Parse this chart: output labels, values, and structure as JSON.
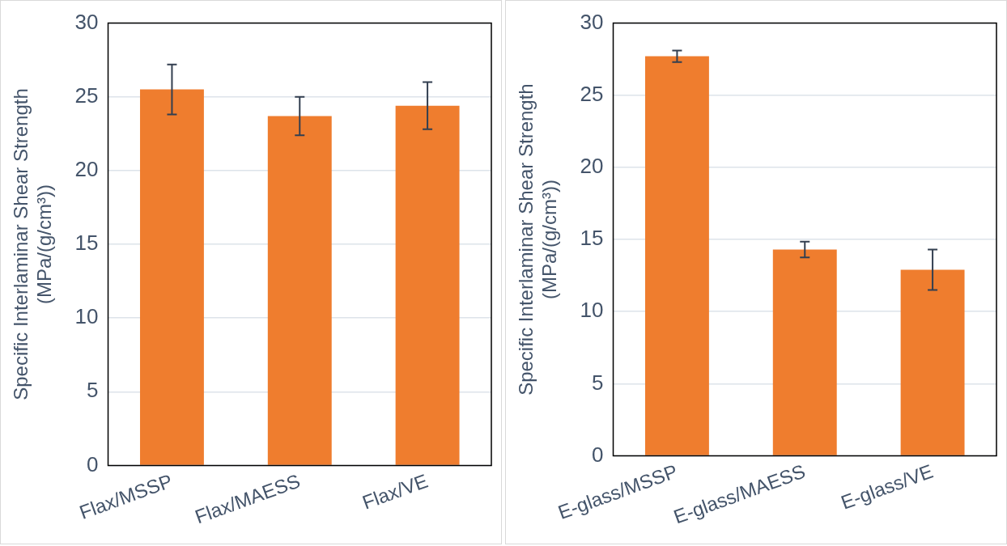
{
  "chart_data": [
    {
      "type": "bar",
      "categories": [
        "Flax/MSSP",
        "Flax/MAESS",
        "Flax/VE"
      ],
      "values": [
        25.5,
        23.7,
        24.4
      ],
      "errors": [
        1.7,
        1.3,
        1.6
      ],
      "color": "#ef7d2e",
      "ylabel": "Specific Interlaminar Shear Strength (MPa/(g/cm³))",
      "ylim": [
        0,
        30
      ],
      "yticks": [
        0,
        5,
        10,
        15,
        20,
        25,
        30
      ],
      "grid": "y",
      "legend": false
    },
    {
      "type": "bar",
      "categories": [
        "E-glass/MSSP",
        "E-glass/MAESS",
        "E-glass/VE"
      ],
      "values": [
        27.7,
        14.3,
        12.9
      ],
      "errors": [
        0.4,
        0.55,
        1.4
      ],
      "color": "#ef7d2e",
      "ylabel": "Specific Interlaminar Shear Strength (MPa/(g/cm³))",
      "ylim": [
        0,
        30
      ],
      "yticks": [
        0,
        5,
        10,
        15,
        20,
        25,
        30
      ],
      "grid": "y",
      "legend": false
    }
  ]
}
